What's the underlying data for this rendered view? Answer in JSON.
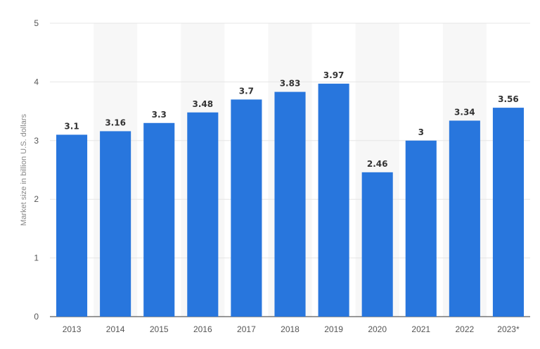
{
  "chart_data": {
    "type": "bar",
    "title": "",
    "xlabel": "",
    "ylabel": "Market size in billion U.S. dollars",
    "categories": [
      "2013",
      "2014",
      "2015",
      "2016",
      "2017",
      "2018",
      "2019",
      "2020",
      "2021",
      "2022",
      "2023*"
    ],
    "values": [
      3.1,
      3.16,
      3.3,
      3.48,
      3.7,
      3.83,
      3.97,
      2.46,
      3,
      3.34,
      3.56
    ],
    "value_labels": [
      "3.1",
      "3.16",
      "3.3",
      "3.48",
      "3.7",
      "3.83",
      "3.97",
      "2.46",
      "3",
      "3.34",
      "3.56"
    ],
    "ylim": [
      0,
      5
    ],
    "yticks": [
      "0",
      "1",
      "2",
      "3",
      "4",
      "5"
    ],
    "grid": "horizontal",
    "legend": "none",
    "bar_color": "#2876dd",
    "band_color": "#f7f7f7"
  }
}
